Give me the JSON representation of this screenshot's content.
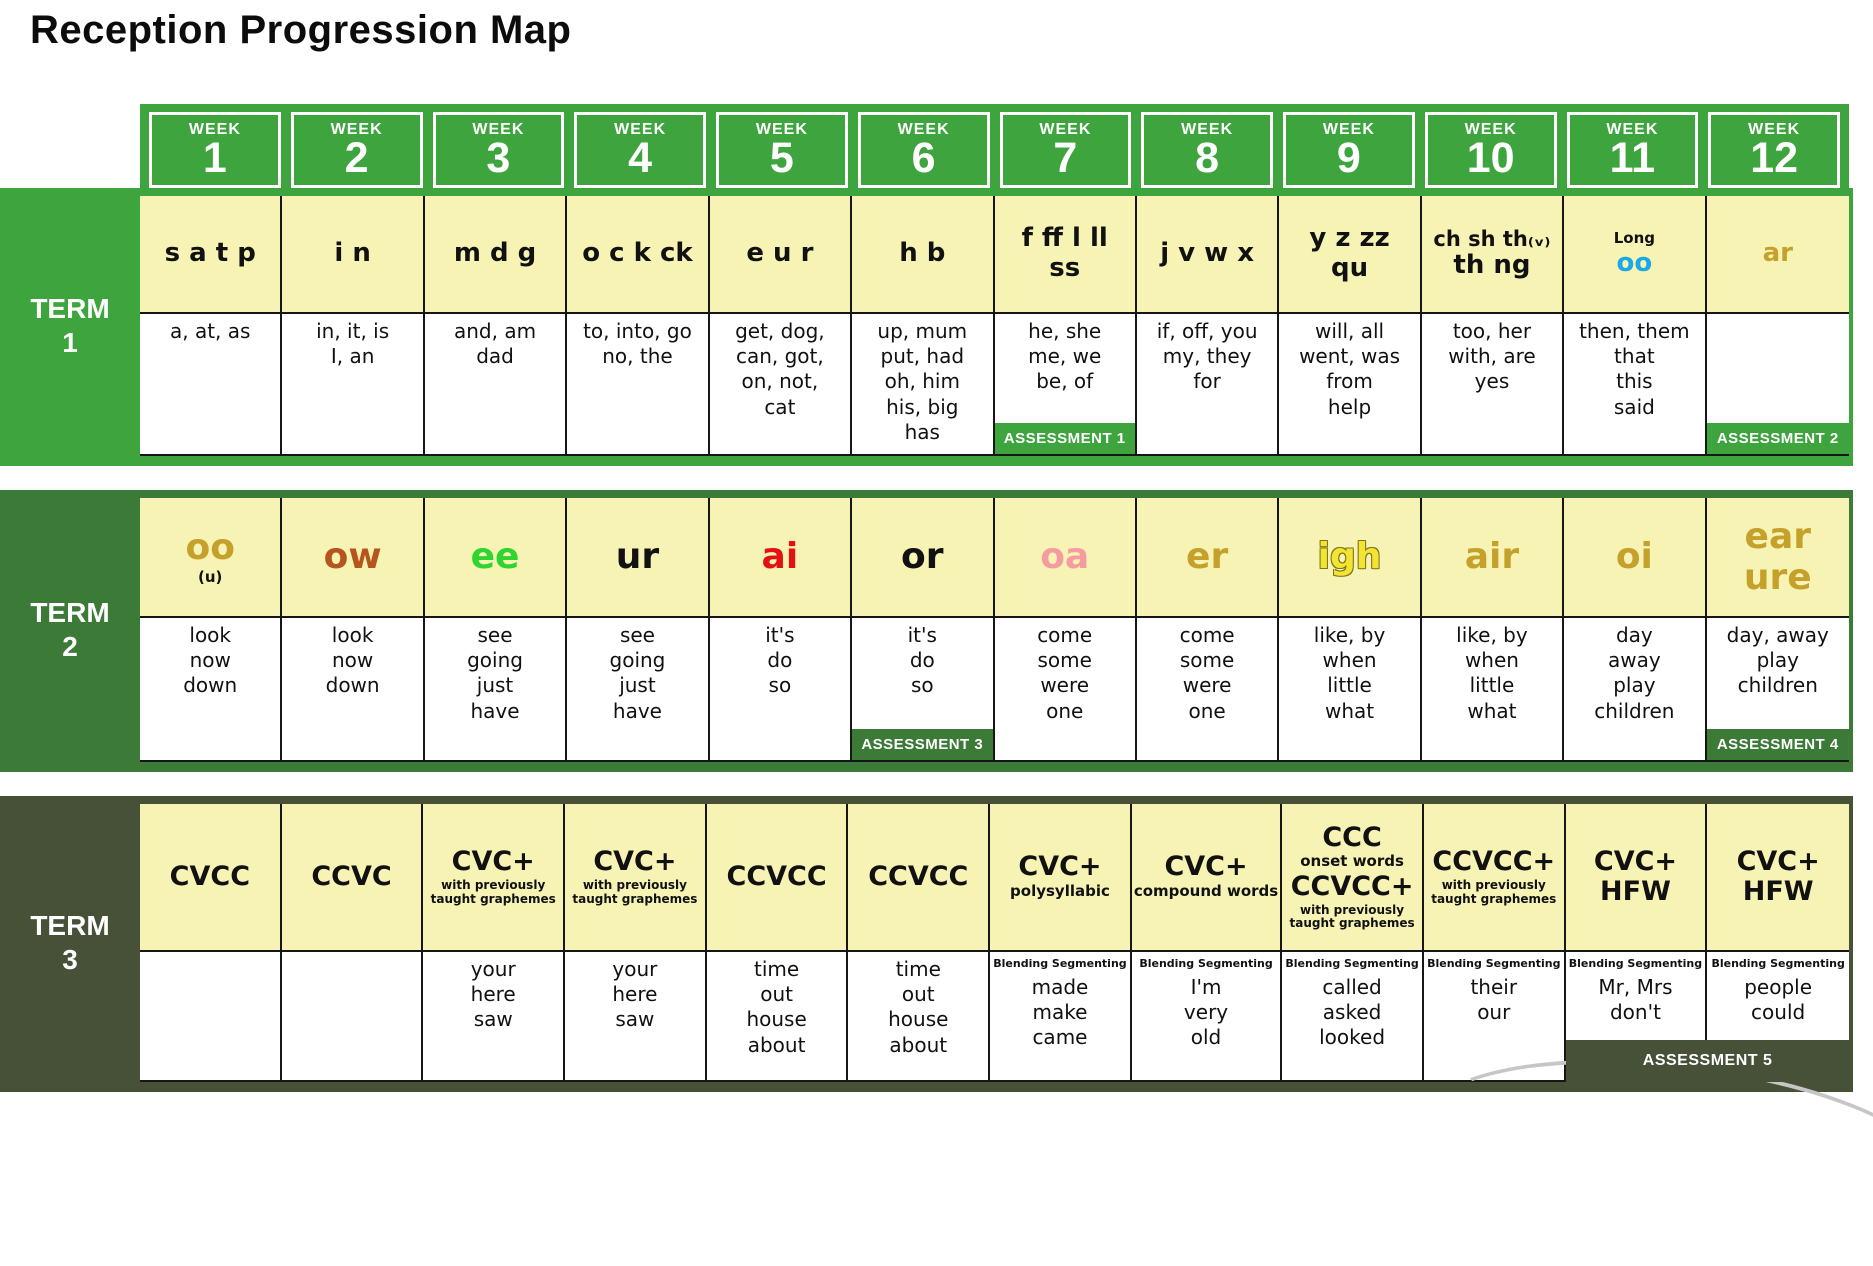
{
  "title": "Reception Progression Map",
  "week_label": "WEEK",
  "weeks": [
    "1",
    "2",
    "3",
    "4",
    "5",
    "6",
    "7",
    "8",
    "9",
    "10",
    "11",
    "12"
  ],
  "colors": {
    "term1_green": "#3EA53E",
    "term2_green": "#3C7A37",
    "term3_olive": "#465138",
    "cell_yellow": "#F6F3B4",
    "phoneme_blue": "#1BA7E8",
    "phoneme_gold": "#C5A12B",
    "phoneme_rust": "#B5551C",
    "phoneme_bright_green": "#2FD42F",
    "phoneme_red": "#E31212",
    "phoneme_pink": "#F49CA2",
    "phoneme_igh_yellow": "#F2E431"
  },
  "terms": [
    {
      "id": "t1",
      "label": [
        "TERM",
        "1"
      ],
      "weeks": [
        {
          "ph": [
            {
              "t": "s a t p"
            }
          ],
          "words": [
            "a, at, as"
          ]
        },
        {
          "ph": [
            {
              "t": "i n"
            }
          ],
          "words": [
            "in, it, is",
            "I, an"
          ]
        },
        {
          "ph": [
            {
              "t": "m d g"
            }
          ],
          "words": [
            "and, am",
            "dad"
          ]
        },
        {
          "ph": [
            {
              "t": "o c k ck"
            }
          ],
          "words": [
            "to, into, go",
            "no, the"
          ]
        },
        {
          "ph": [
            {
              "t": "e u r"
            }
          ],
          "words": [
            "get, dog,",
            "can, got,",
            "on, not,",
            "cat"
          ]
        },
        {
          "ph": [
            {
              "t": "h b"
            }
          ],
          "words": [
            "up, mum",
            "put, had",
            "oh, him",
            "his, big",
            "has"
          ]
        },
        {
          "ph": [
            {
              "t": "f ff l ll"
            },
            {
              "t": "ss"
            }
          ],
          "words": [
            "he, she",
            "me, we",
            "be, of"
          ],
          "assessment": {
            "label": "ASSESSMENT 1"
          }
        },
        {
          "ph": [
            {
              "t": "j v w x"
            }
          ],
          "words": [
            "if, off, you",
            "my, they",
            "for"
          ]
        },
        {
          "ph": [
            {
              "t": "y z zz"
            },
            {
              "t": "qu"
            }
          ],
          "words": [
            "will, all",
            "went, was",
            "from",
            "help"
          ]
        },
        {
          "ph": [
            {
              "t": "ch sh th₍ᵥ₎",
              "s": "lg2"
            },
            {
              "t": "th ng"
            }
          ],
          "words": [
            "too, her",
            "with, are",
            "yes"
          ]
        },
        {
          "ph": [
            {
              "t": "Long",
              "s": "md"
            },
            {
              "t": "oo",
              "c": "blue"
            }
          ],
          "words": [
            "then, them",
            "that",
            "this",
            "said"
          ]
        },
        {
          "ph": [
            {
              "t": "ar",
              "c": "gold"
            }
          ],
          "words": [],
          "assessment": {
            "label": "ASSESSMENT 2"
          }
        }
      ]
    },
    {
      "id": "t2",
      "label": [
        "TERM",
        "2"
      ],
      "weeks": [
        {
          "ph": [
            {
              "t": "oo",
              "c": "gold"
            },
            {
              "t": "(u)",
              "s": "md"
            }
          ],
          "words": [
            "look",
            "now",
            "down"
          ]
        },
        {
          "ph": [
            {
              "t": "ow",
              "c": "rust"
            }
          ],
          "words": [
            "look",
            "now",
            "down"
          ]
        },
        {
          "ph": [
            {
              "t": "ee",
              "c": "brightgreen"
            }
          ],
          "words": [
            "see",
            "going",
            "just",
            "have"
          ]
        },
        {
          "ph": [
            {
              "t": "ur"
            }
          ],
          "words": [
            "see",
            "going",
            "just",
            "have"
          ]
        },
        {
          "ph": [
            {
              "t": "ai",
              "c": "red"
            }
          ],
          "words": [
            "it's",
            "do",
            "so"
          ]
        },
        {
          "ph": [
            {
              "t": "or"
            }
          ],
          "words": [
            "it's",
            "do",
            "so"
          ],
          "assessment": {
            "label": "ASSESSMENT 3"
          }
        },
        {
          "ph": [
            {
              "t": "oa",
              "c": "pink"
            }
          ],
          "words": [
            "come",
            "some",
            "were",
            "one"
          ]
        },
        {
          "ph": [
            {
              "t": "er",
              "c": "gold"
            }
          ],
          "words": [
            "come",
            "some",
            "were",
            "one"
          ]
        },
        {
          "ph": [
            {
              "t": "igh",
              "c": "igh"
            }
          ],
          "words": [
            "like, by",
            "when",
            "little",
            "what"
          ]
        },
        {
          "ph": [
            {
              "t": "air",
              "c": "gold"
            }
          ],
          "words": [
            "like, by",
            "when",
            "little",
            "what"
          ]
        },
        {
          "ph": [
            {
              "t": "oi",
              "c": "gold"
            }
          ],
          "words": [
            "day",
            "away",
            "play",
            "children"
          ]
        },
        {
          "ph": [
            {
              "t": "ear",
              "c": "gold"
            },
            {
              "t": "ure",
              "c": "gold"
            }
          ],
          "words": [
            "day, away",
            "play",
            "children"
          ],
          "assessment": {
            "label": "ASSESSMENT 4"
          }
        }
      ]
    },
    {
      "id": "t3",
      "label": [
        "TERM",
        "3"
      ],
      "weeks": [
        {
          "ph": [
            {
              "t": "CVCC"
            }
          ],
          "words": []
        },
        {
          "ph": [
            {
              "t": "CCVC"
            }
          ],
          "words": []
        },
        {
          "ph": [
            {
              "t": "CVC+"
            },
            {
              "t": "with previously taught graphemes",
              "s": "sm"
            }
          ],
          "words": [
            "your",
            "here",
            "saw"
          ]
        },
        {
          "ph": [
            {
              "t": "CVC+"
            },
            {
              "t": "with previously taught graphemes",
              "s": "sm"
            }
          ],
          "words": [
            "your",
            "here",
            "saw"
          ]
        },
        {
          "ph": [
            {
              "t": "CCVCC"
            }
          ],
          "words": [
            "time",
            "out",
            "house",
            "about"
          ]
        },
        {
          "ph": [
            {
              "t": "CCVCC"
            }
          ],
          "words": [
            "time",
            "out",
            "house",
            "about"
          ]
        },
        {
          "ph": [
            {
              "t": "CVC+"
            },
            {
              "t": "polysyllabic",
              "s": "md"
            }
          ],
          "pre": "Blending Segmenting",
          "words": [
            "made",
            "make",
            "came"
          ]
        },
        {
          "ph": [
            {
              "t": "CVC+"
            },
            {
              "t": "compound words",
              "s": "md"
            }
          ],
          "pre": "Blending Segmenting",
          "words": [
            "I'm",
            "very",
            "old"
          ]
        },
        {
          "ph": [
            {
              "t": "CCC"
            },
            {
              "t": "onset words",
              "s": "md"
            },
            {
              "t": "CCVCC+"
            },
            {
              "t": "with previously taught graphemes",
              "s": "sm"
            }
          ],
          "pre": "Blending Segmenting",
          "words": [
            "called",
            "asked",
            "looked"
          ]
        },
        {
          "ph": [
            {
              "t": "CCVCC+"
            },
            {
              "t": "with previously taught graphemes",
              "s": "sm"
            }
          ],
          "pre": "Blending Segmenting",
          "words": [
            "their",
            "our"
          ]
        },
        {
          "ph": [
            {
              "t": "CVC+"
            },
            {
              "t": "HFW"
            }
          ],
          "pre": "Blending Segmenting",
          "words": [
            "Mr, Mrs",
            "don't"
          ],
          "assessment": {
            "label": "ASSESSMENT 5",
            "span": 2
          }
        },
        {
          "ph": [
            {
              "t": "CVC+"
            },
            {
              "t": "HFW"
            }
          ],
          "pre": "Blending Segmenting",
          "words": [
            "people",
            "could"
          ]
        }
      ]
    }
  ]
}
